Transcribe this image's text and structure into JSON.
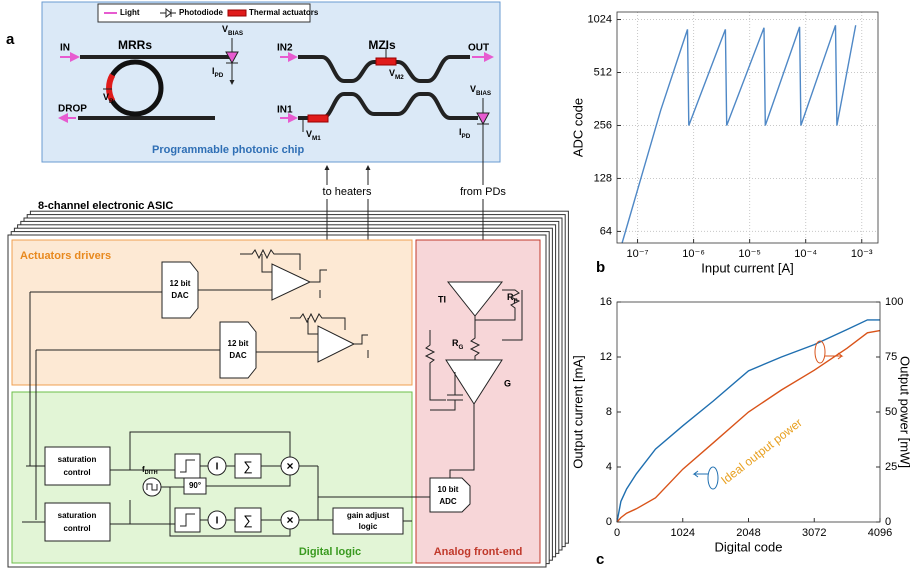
{
  "diagram": {
    "panel_label": "a",
    "legend": [
      "Light",
      "Photodiode",
      "Thermal actuators"
    ],
    "chip_title": "Programmable photonic chip",
    "mrr_title": "MRRs",
    "mzi_title": "MZIs",
    "ports": {
      "in": "IN",
      "drop": "DROP",
      "in2": "IN2",
      "in1": "IN1",
      "out": "OUT"
    },
    "symbols": {
      "vbias": {
        "main": "V",
        "sub": "BIAS"
      },
      "ipd": {
        "main": "I",
        "sub": "PD"
      },
      "vr": {
        "main": "V",
        "sub": "R"
      },
      "vm1": {
        "main": "V",
        "sub": "M1"
      },
      "vm2": {
        "main": "V",
        "sub": "M2"
      },
      "rf": {
        "main": "R",
        "sub": "F"
      },
      "rg": {
        "main": "R",
        "sub": "G"
      },
      "fdith": {
        "main": "f",
        "sub": "DITH"
      }
    },
    "links": {
      "to_heaters": "to heaters",
      "from_pds": "from PDs"
    },
    "asic_title": "8-channel electronic ASIC",
    "blocks": {
      "actuators": "Actuators drivers",
      "digital": "Digital logic",
      "analog": "Analog front-end"
    },
    "components": {
      "dac_bits": "12 bit",
      "dac": "DAC",
      "adc_bits": "10 bit",
      "adc": "ADC",
      "ti": "TI",
      "g": "G",
      "saturation": "saturation",
      "control": "control",
      "phase": "90°",
      "gain_adjust": "gain adjust",
      "logic": "logic",
      "integrate": "I",
      "sum": "∑",
      "multiply": "×"
    }
  },
  "chart_data": [
    {
      "type": "line",
      "panel_label": "b",
      "xlabel": "Input current [A]",
      "ylabel": "ADC code",
      "xlog": true,
      "ylog": true,
      "grid": true,
      "color": "#4f88c6",
      "x": [
        5.3e-08,
        2.6e-07,
        7.8e-07,
        8.2e-07,
        3.7e-06,
        3.9e-06,
        1.8e-05,
        1.9e-05,
        7.8e-05,
        8.2e-05,
        0.00034,
        0.00036,
        0.00078
      ],
      "values": [
        55,
        314,
        900,
        256,
        900,
        256,
        920,
        256,
        930,
        256,
        950,
        256,
        950
      ],
      "xlim": [
        4.3e-08,
        0.00195
      ],
      "ylim": [
        55,
        1130
      ],
      "xticks": [
        {
          "value": 1e-07,
          "label": "10⁻⁷"
        },
        {
          "value": 1e-06,
          "label": "10⁻⁶"
        },
        {
          "value": 1e-05,
          "label": "10⁻⁵"
        },
        {
          "value": 0.0001,
          "label": "10⁻⁴"
        },
        {
          "value": 0.001,
          "label": "10⁻³"
        }
      ],
      "yticks": [
        64,
        128,
        256,
        512,
        1024
      ]
    },
    {
      "type": "line",
      "panel_label": "c",
      "xlabel": "Digital code",
      "ylabel": "Output current [mA]",
      "y2label": "Output power [mW]",
      "annotation": "Ideal output power",
      "grid": false,
      "x": [
        0,
        60,
        150,
        300,
        600,
        1024,
        1500,
        2048,
        2560,
        3072,
        3584,
        3900,
        4096
      ],
      "series": [
        {
          "color": "#1f6fb0",
          "values": [
            0,
            1.5,
            2.4,
            3.5,
            5.3,
            7.0,
            8.8,
            11.0,
            12.0,
            12.9,
            14.0,
            14.7,
            14.7
          ]
        },
        {
          "color": "#d95319",
          "axis": "y2",
          "values": [
            0,
            2,
            4,
            6,
            11,
            24,
            36,
            50,
            60,
            69,
            79,
            86,
            87
          ]
        }
      ],
      "xlim": [
        0,
        4096
      ],
      "ylim": [
        0,
        16
      ],
      "y2lim": [
        0,
        100
      ],
      "xticks": [
        0,
        1024,
        2048,
        3072,
        4096
      ],
      "yticks": [
        0,
        4,
        8,
        12,
        16
      ],
      "y2ticks": [
        0,
        25,
        50,
        75,
        100
      ]
    }
  ]
}
